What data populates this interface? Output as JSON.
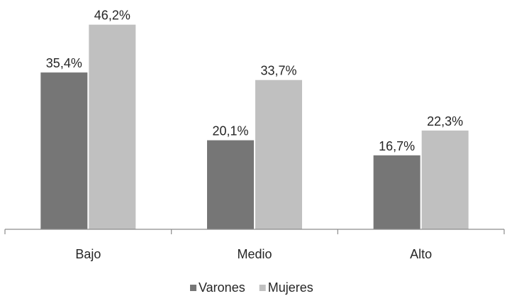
{
  "chart_data": {
    "type": "bar",
    "categories": [
      "Bajo",
      "Medio",
      "Alto"
    ],
    "series": [
      {
        "name": "Varones",
        "values": [
          35.4,
          20.1,
          16.7
        ],
        "labels": [
          "35,4%",
          "20,1%",
          "16,7%"
        ],
        "color": "#767676"
      },
      {
        "name": "Mujeres",
        "values": [
          46.2,
          33.7,
          22.3
        ],
        "labels": [
          "46,2%",
          "33,7%",
          "22,3%"
        ],
        "color": "#c0c0c0"
      }
    ],
    "title": "",
    "xlabel": "",
    "ylabel": "",
    "ylim": [
      0,
      50
    ],
    "grid": false,
    "legend_position": "bottom"
  }
}
